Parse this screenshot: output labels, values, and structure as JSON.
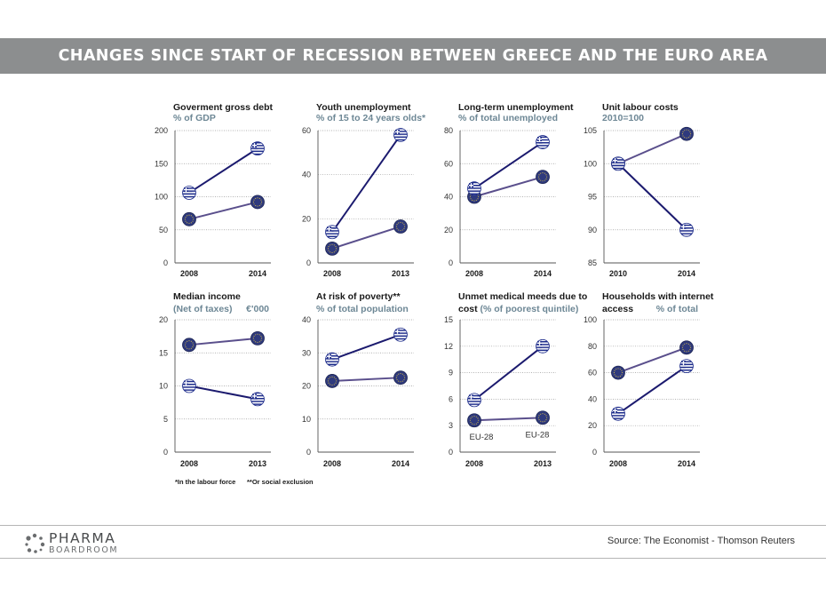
{
  "banner_title": "CHANGES SINCE START OF RECESSION BETWEEN GREECE AND THE EURO AREA",
  "footnotes": [
    "*In the labour force",
    "**Or social exclusion"
  ],
  "source": "Source: The Economist - Thomson Reuters",
  "logo": {
    "line1": "PHARMA",
    "line2": "BOARDROOM"
  },
  "colors": {
    "greece_line": "#1b1a6e",
    "euro_line": "#5a4f8c",
    "euro_marker": "#2f3a7d",
    "subtitle": "#6d8795",
    "grid": "#9a9a9a"
  },
  "chart_data": [
    {
      "type": "line",
      "title": "Goverment gross debt",
      "subtitle": "% of GDP",
      "subtitle_right": "",
      "categories": [
        "2008",
        "2014"
      ],
      "ylim": [
        0,
        200
      ],
      "yticks": [
        "0",
        "50",
        "100",
        "150",
        "200"
      ],
      "series": [
        {
          "marker": "greece",
          "values": [
            106,
            173
          ]
        },
        {
          "marker": "euro",
          "values": [
            66,
            92
          ]
        }
      ],
      "annotations": []
    },
    {
      "type": "line",
      "title": "Youth unemployment",
      "subtitle": "% of 15 to 24 years olds*",
      "subtitle_right": "",
      "categories": [
        "2008",
        "2013"
      ],
      "ylim": [
        0,
        60
      ],
      "yticks": [
        "0",
        "20",
        "40",
        "60"
      ],
      "series": [
        {
          "marker": "greece",
          "values": [
            14,
            58
          ]
        },
        {
          "marker": "euro",
          "values": [
            6.5,
            16.5
          ]
        }
      ],
      "annotations": []
    },
    {
      "type": "line",
      "title": "Long-term unemployment",
      "subtitle": "% of total unemployed",
      "subtitle_right": "",
      "categories": [
        "2008",
        "2014"
      ],
      "ylim": [
        0,
        80
      ],
      "yticks": [
        "0",
        "20",
        "40",
        "60",
        "80"
      ],
      "series": [
        {
          "marker": "greece",
          "values": [
            45,
            73
          ]
        },
        {
          "marker": "euro",
          "values": [
            40,
            52
          ]
        }
      ],
      "annotations": []
    },
    {
      "type": "line",
      "title": "Unit labour costs",
      "subtitle": "2010=100",
      "subtitle_right": "",
      "categories": [
        "2010",
        "2014"
      ],
      "ylim": [
        85,
        105
      ],
      "yticks": [
        "85",
        "90",
        "95",
        "100",
        "105"
      ],
      "series": [
        {
          "marker": "greece",
          "values": [
            100,
            90
          ]
        },
        {
          "marker": "euro",
          "values": [
            100,
            104.5
          ]
        }
      ],
      "annotations": []
    },
    {
      "type": "line",
      "title": "Median income",
      "subtitle": "(Net of taxes)",
      "subtitle_right": "€'000",
      "categories": [
        "2008",
        "2013"
      ],
      "ylim": [
        0,
        20
      ],
      "yticks": [
        "0",
        "5",
        "10",
        "15",
        "20"
      ],
      "series": [
        {
          "marker": "greece",
          "values": [
            10,
            8
          ]
        },
        {
          "marker": "euro",
          "values": [
            16.2,
            17.2
          ]
        }
      ],
      "annotations": []
    },
    {
      "type": "line",
      "title": "At risk of poverty**",
      "subtitle": "% of total population",
      "subtitle_right": "",
      "categories": [
        "2008",
        "2014"
      ],
      "ylim": [
        0,
        40
      ],
      "yticks": [
        "0",
        "10",
        "20",
        "30",
        "40"
      ],
      "series": [
        {
          "marker": "greece",
          "values": [
            28,
            35.5
          ]
        },
        {
          "marker": "euro",
          "values": [
            21.5,
            22.5
          ]
        }
      ],
      "annotations": []
    },
    {
      "type": "line",
      "title": "Unmet medical meeds due to",
      "title2": "cost",
      "title2_suffix": " (% of poorest quintile)",
      "subtitle": "",
      "subtitle_right": "",
      "categories": [
        "2008",
        "2013"
      ],
      "ylim": [
        0,
        15
      ],
      "yticks": [
        "0",
        "3",
        "6",
        "9",
        "12",
        "15"
      ],
      "series": [
        {
          "marker": "greece",
          "values": [
            5.9,
            12
          ]
        },
        {
          "marker": "euro",
          "values": [
            3.6,
            3.9
          ]
        }
      ],
      "annotations": [
        "EU-28",
        "EU-28"
      ]
    },
    {
      "type": "line",
      "title": "Households with internet",
      "title2": "access",
      "subtitle": "",
      "subtitle_right": "% of total",
      "categories": [
        "2008",
        "2014"
      ],
      "ylim": [
        0,
        100
      ],
      "yticks": [
        "0",
        "20",
        "40",
        "60",
        "80",
        "100"
      ],
      "series": [
        {
          "marker": "greece",
          "values": [
            29,
            65
          ]
        },
        {
          "marker": "euro",
          "values": [
            60,
            79
          ]
        }
      ],
      "annotations": []
    }
  ]
}
